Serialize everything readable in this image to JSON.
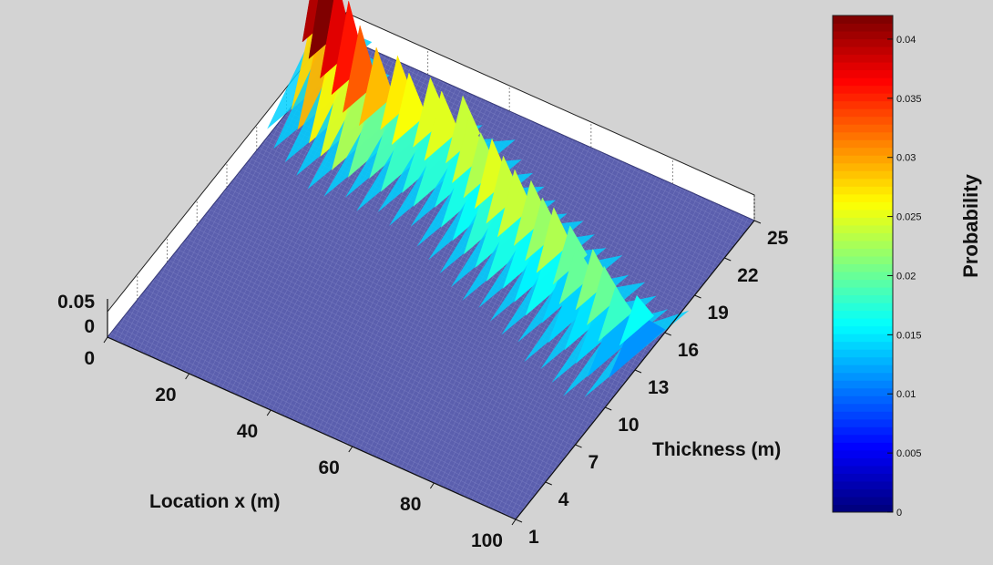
{
  "chart_data": {
    "type": "surface",
    "xlabel": "Location x (m)",
    "ylabel": "Thickness (m)",
    "colorbar_label": "Probability",
    "x_ticks": [
      "0",
      "20",
      "40",
      "60",
      "80",
      "100"
    ],
    "y_ticks": [
      "1",
      "4",
      "7",
      "10",
      "13",
      "16",
      "19",
      "22",
      "25"
    ],
    "z_ticks": [
      "0",
      "0.05"
    ],
    "xlim": [
      0,
      100
    ],
    "ylim": [
      1,
      25
    ],
    "zlim": [
      0,
      0.05
    ],
    "colorbar_ticks": [
      "0",
      "0.005",
      "0.01",
      "0.015",
      "0.02",
      "0.025",
      "0.03",
      "0.035",
      "0.04"
    ],
    "colorbar_range": [
      0,
      0.042
    ],
    "colormap": "jet",
    "grid": true,
    "ridge": [
      {
        "x": 2,
        "thickness": 21.5,
        "probability": 0.04
      },
      {
        "x": 6,
        "thickness": 20.5,
        "probability": 0.042
      },
      {
        "x": 10,
        "thickness": 20.0,
        "probability": 0.038
      },
      {
        "x": 14,
        "thickness": 19.5,
        "probability": 0.036
      },
      {
        "x": 18,
        "thickness": 19.0,
        "probability": 0.033
      },
      {
        "x": 22,
        "thickness": 19.0,
        "probability": 0.029
      },
      {
        "x": 26,
        "thickness": 19.5,
        "probability": 0.027
      },
      {
        "x": 30,
        "thickness": 19.0,
        "probability": 0.026
      },
      {
        "x": 34,
        "thickness": 19.5,
        "probability": 0.025
      },
      {
        "x": 38,
        "thickness": 19.0,
        "probability": 0.025
      },
      {
        "x": 42,
        "thickness": 19.5,
        "probability": 0.024
      },
      {
        "x": 46,
        "thickness": 18.5,
        "probability": 0.024
      },
      {
        "x": 50,
        "thickness": 18.0,
        "probability": 0.023
      },
      {
        "x": 54,
        "thickness": 17.5,
        "probability": 0.025
      },
      {
        "x": 58,
        "thickness": 17.0,
        "probability": 0.024
      },
      {
        "x": 62,
        "thickness": 16.5,
        "probability": 0.024
      },
      {
        "x": 66,
        "thickness": 16.5,
        "probability": 0.023
      },
      {
        "x": 70,
        "thickness": 16.0,
        "probability": 0.022
      },
      {
        "x": 74,
        "thickness": 15.5,
        "probability": 0.023
      },
      {
        "x": 78,
        "thickness": 15.5,
        "probability": 0.02
      },
      {
        "x": 82,
        "thickness": 14.5,
        "probability": 0.02
      },
      {
        "x": 86,
        "thickness": 14.5,
        "probability": 0.021
      },
      {
        "x": 90,
        "thickness": 14.0,
        "probability": 0.02
      },
      {
        "x": 94,
        "thickness": 13.5,
        "probability": 0.018
      },
      {
        "x": 98,
        "thickness": 14.0,
        "probability": 0.016
      }
    ]
  }
}
